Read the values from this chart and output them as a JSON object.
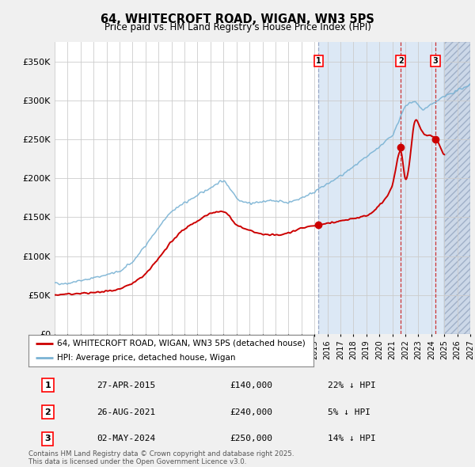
{
  "title": "64, WHITECROFT ROAD, WIGAN, WN3 5PS",
  "subtitle": "Price paid vs. HM Land Registry's House Price Index (HPI)",
  "legend_line1": "64, WHITECROFT ROAD, WIGAN, WN3 5PS (detached house)",
  "legend_line2": "HPI: Average price, detached house, Wigan",
  "footnote": "Contains HM Land Registry data © Crown copyright and database right 2025.\nThis data is licensed under the Open Government Licence v3.0.",
  "transactions": [
    {
      "num": 1,
      "date": "27-APR-2015",
      "price": "£140,000",
      "hpi_pct": "22% ↓ HPI",
      "year": 2015.32,
      "price_val": 140000
    },
    {
      "num": 2,
      "date": "26-AUG-2021",
      "price": "£240,000",
      "hpi_pct": "5% ↓ HPI",
      "year": 2021.65,
      "price_val": 240000
    },
    {
      "num": 3,
      "date": "02-MAY-2024",
      "price": "£250,000",
      "hpi_pct": "14% ↓ HPI",
      "year": 2024.33,
      "price_val": 250000
    }
  ],
  "hpi_color": "#7ab3d4",
  "price_color": "#cc0000",
  "background_color": "#f0f0f0",
  "plot_bg_color": "#ffffff",
  "shaded_region_color": "#dce8f5",
  "hatch_color": "#ccd8e8",
  "vline1_color": "#aaaacc",
  "vline23_color": "#cc3333",
  "xlim": [
    1995,
    2027
  ],
  "ylim": [
    0,
    375000
  ],
  "yticks": [
    0,
    50000,
    100000,
    150000,
    200000,
    250000,
    300000,
    350000
  ],
  "ytick_labels": [
    "£0",
    "£50K",
    "£100K",
    "£150K",
    "£200K",
    "£250K",
    "£300K",
    "£350K"
  ]
}
